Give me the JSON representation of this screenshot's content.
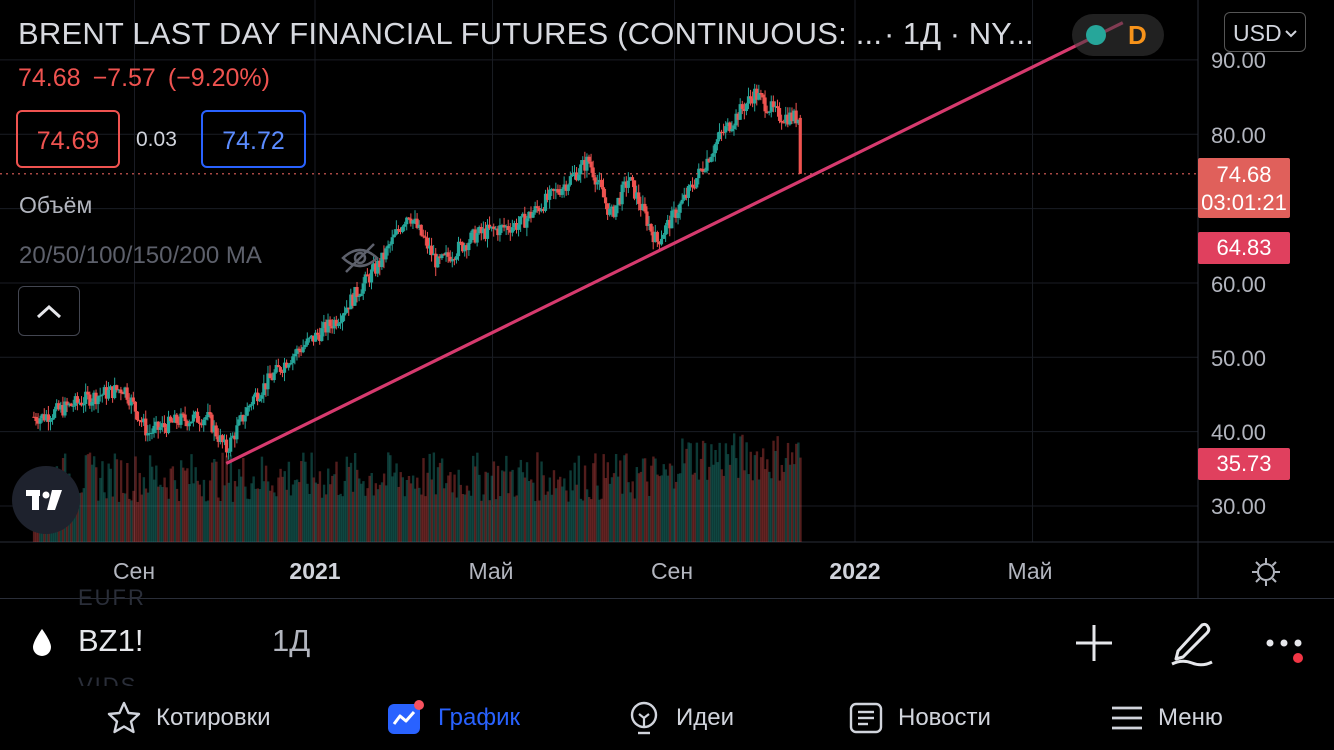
{
  "header": {
    "title": "BRENT LAST DAY FINANCIAL FUTURES (CONTINUOUS: ...",
    "timeframe_exchange": "· 1Д · NY...",
    "status_letter": "D",
    "currency": "USD"
  },
  "quote": {
    "last": "74.68",
    "change": "−7.57",
    "change_pct": "(−9.20%)",
    "bid": "74.69",
    "spread": "0.03",
    "ask": "74.72"
  },
  "indicators": {
    "volume_label": "Объём",
    "ma_label": "20/50/100/150/200 MA"
  },
  "price_axis": {
    "labels": [
      "90.00",
      "80.00",
      "60.00",
      "50.00",
      "40.00",
      "30.00"
    ],
    "last_price": "74.68",
    "countdown": "03:01:21",
    "high_badge": "64.83",
    "low_badge": "35.73"
  },
  "time_axis": {
    "labels": [
      "Сен",
      "2021",
      "Май",
      "Сен",
      "2022",
      "Май"
    ]
  },
  "symbol_bar": {
    "symbol": "BZ1!",
    "timeframe": "1Д",
    "ghost_top": "EUFR",
    "ghost_bottom": "VIDS"
  },
  "nav": {
    "items": [
      {
        "label": "Котировки",
        "icon": "star-icon"
      },
      {
        "label": "График",
        "icon": "chart-icon"
      },
      {
        "label": "Идеи",
        "icon": "bulb-icon"
      },
      {
        "label": "Новости",
        "icon": "news-icon"
      },
      {
        "label": "Меню",
        "icon": "menu-icon"
      }
    ],
    "active": "График"
  },
  "colors": {
    "up": "#26a69a",
    "down": "#ef5350",
    "trendline": "#d63a6e",
    "accent": "#2962ff"
  },
  "chart_data": {
    "type": "candlestick",
    "title": "BRENT LAST DAY FINANCIAL FUTURES (CONTINUOUS: ...",
    "interval": "1Д",
    "currency": "USD",
    "ylim": [
      25,
      92
    ],
    "y_ticks": [
      30,
      40,
      50,
      60,
      80,
      90
    ],
    "x_ticks": [
      "Сен",
      "2021",
      "Май",
      "Сен",
      "2022",
      "Май"
    ],
    "x_range": [
      "2020-07",
      "2022-07"
    ],
    "series": [
      {
        "name": "BZ1!",
        "points": [
          {
            "date": "2020-07-01",
            "close": 42.0
          },
          {
            "date": "2020-08-01",
            "close": 44.5
          },
          {
            "date": "2020-08-25",
            "close": 45.9
          },
          {
            "date": "2020-09-10",
            "close": 39.8
          },
          {
            "date": "2020-10-01",
            "close": 41.5
          },
          {
            "date": "2020-10-20",
            "close": 42.0
          },
          {
            "date": "2020-11-02",
            "close": 37.5
          },
          {
            "date": "2020-11-20",
            "close": 44.5
          },
          {
            "date": "2020-12-15",
            "close": 50.0
          },
          {
            "date": "2021-01-15",
            "close": 55.0
          },
          {
            "date": "2021-02-15",
            "close": 63.0
          },
          {
            "date": "2021-03-05",
            "close": 69.5
          },
          {
            "date": "2021-03-25",
            "close": 62.5
          },
          {
            "date": "2021-04-20",
            "close": 66.5
          },
          {
            "date": "2021-05-20",
            "close": 68.0
          },
          {
            "date": "2021-06-20",
            "close": 73.5
          },
          {
            "date": "2021-07-05",
            "close": 76.5
          },
          {
            "date": "2021-07-20",
            "close": 69.0
          },
          {
            "date": "2021-08-01",
            "close": 74.0
          },
          {
            "date": "2021-08-20",
            "close": 65.5
          },
          {
            "date": "2021-09-10",
            "close": 72.0
          },
          {
            "date": "2021-10-01",
            "close": 79.5
          },
          {
            "date": "2021-10-25",
            "close": 85.5
          },
          {
            "date": "2021-11-10",
            "close": 82.5
          },
          {
            "date": "2021-11-24",
            "close": 82.2
          },
          {
            "date": "2021-11-26",
            "close": 74.68
          }
        ]
      },
      {
        "name": "Trendline",
        "points": [
          {
            "date": "2020-11-02",
            "value": 35.73
          },
          {
            "date": "2021-08-20",
            "value": 64.83
          },
          {
            "date": "2022-07-01",
            "value": 95.0
          }
        ]
      }
    ],
    "last_price": 74.68,
    "volume_shown": true
  }
}
